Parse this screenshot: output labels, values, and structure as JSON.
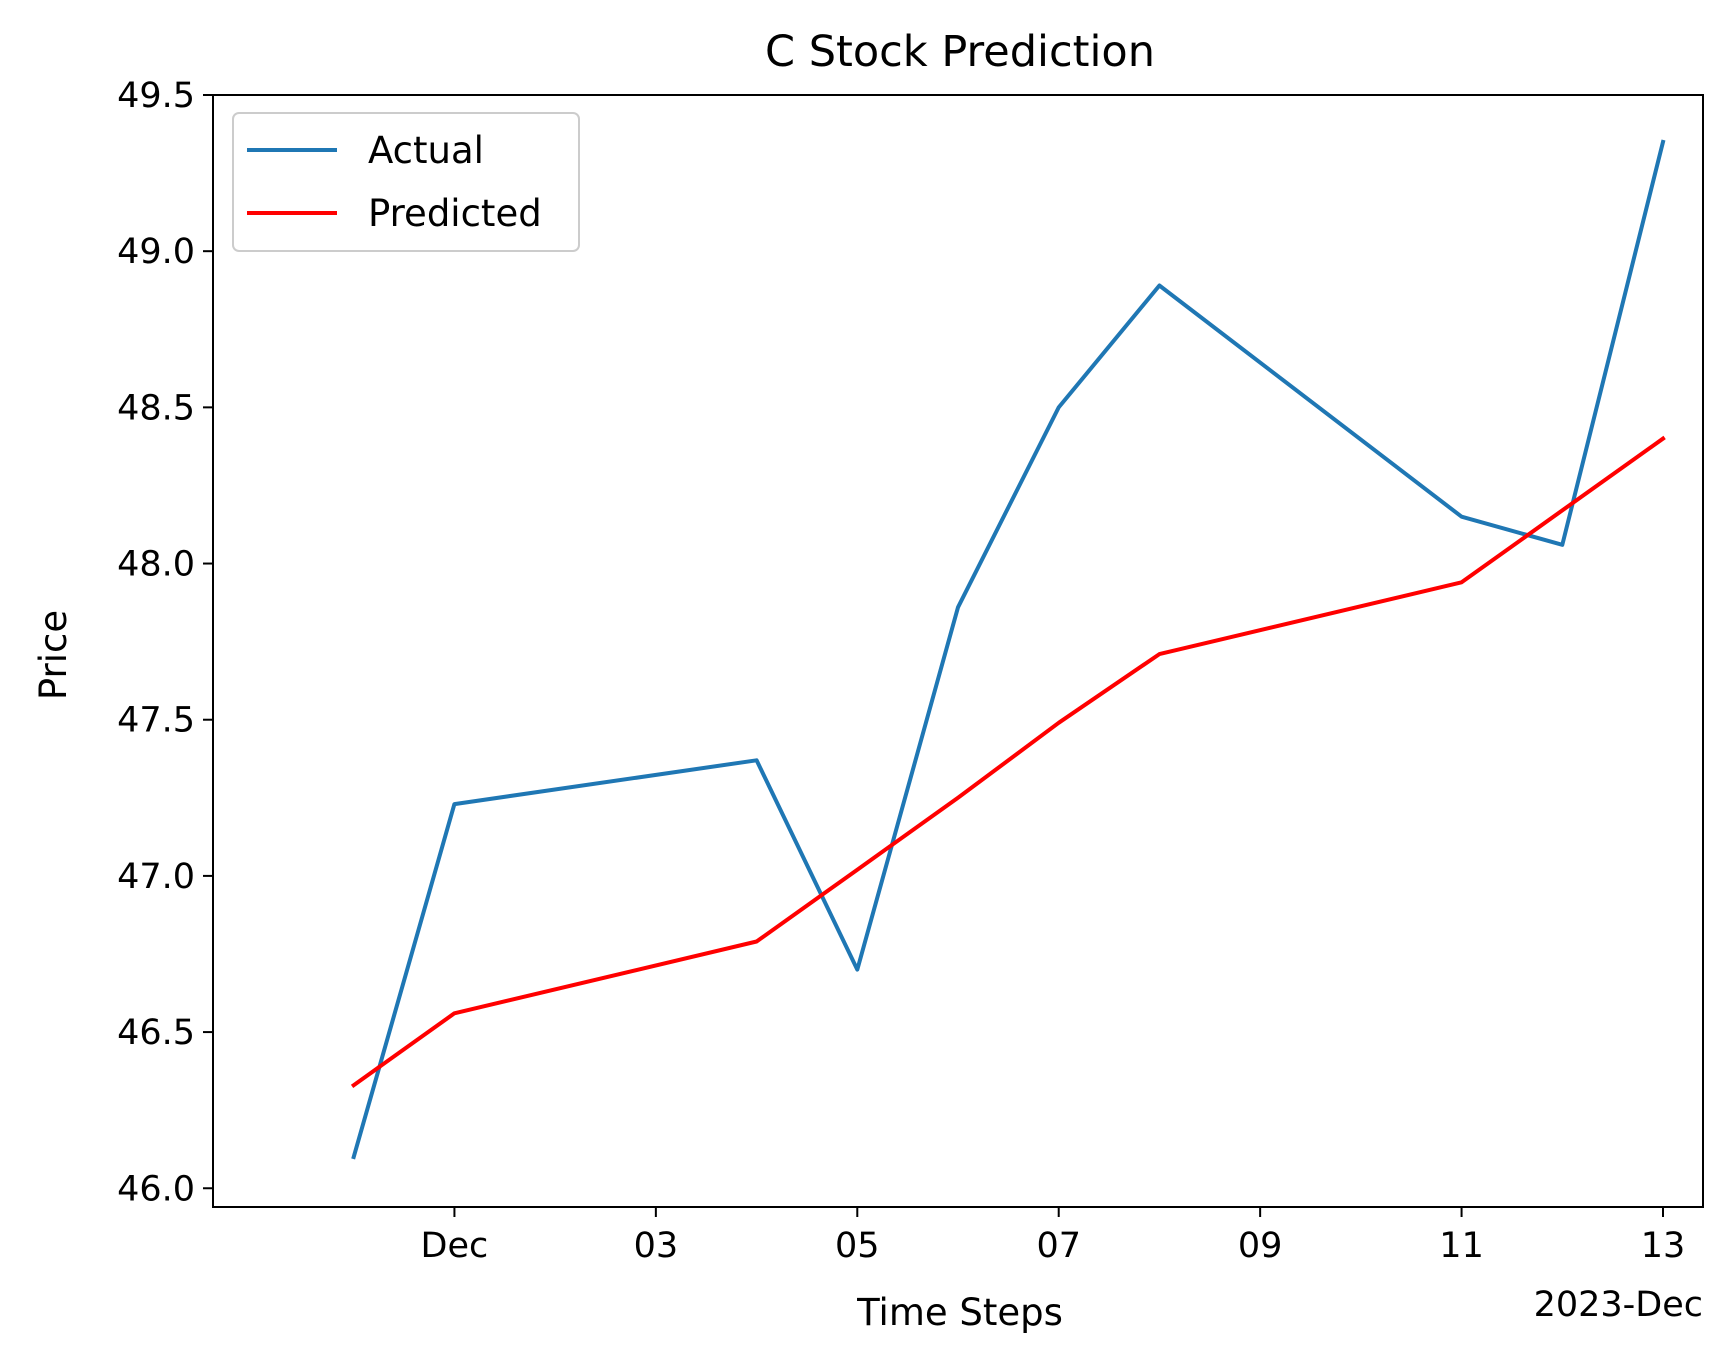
{
  "chart_data": {
    "type": "line",
    "title": "C Stock Prediction",
    "xlabel": "Time Steps",
    "ylabel": "Price",
    "x_offset_label": "2023-Dec",
    "x": [
      "2023-11-30",
      "2023-12-01",
      "2023-12-04",
      "2023-12-05",
      "2023-12-06",
      "2023-12-07",
      "2023-12-08",
      "2023-12-11",
      "2023-12-12",
      "2023-12-13"
    ],
    "xlim": [
      "2023-11-29",
      "2023-12-13"
    ],
    "ylim": [
      45.94,
      49.5
    ],
    "xticks": [
      {
        "date": "2023-12-01",
        "label": "Dec"
      },
      {
        "date": "2023-12-03",
        "label": "03"
      },
      {
        "date": "2023-12-05",
        "label": "05"
      },
      {
        "date": "2023-12-07",
        "label": "07"
      },
      {
        "date": "2023-12-09",
        "label": "09"
      },
      {
        "date": "2023-12-11",
        "label": "11"
      },
      {
        "date": "2023-12-13",
        "label": "13"
      }
    ],
    "yticks": [
      46.0,
      46.5,
      47.0,
      47.5,
      48.0,
      48.5,
      49.0,
      49.5
    ],
    "series": [
      {
        "name": "Actual",
        "color": "#1f77b4",
        "values": [
          46.1,
          47.23,
          47.37,
          46.7,
          47.86,
          48.5,
          48.89,
          48.15,
          48.06,
          49.35
        ]
      },
      {
        "name": "Predicted",
        "color": "#ff0000",
        "values": [
          46.33,
          46.56,
          46.79,
          47.02,
          47.25,
          47.49,
          47.71,
          47.94,
          48.17,
          48.4
        ]
      }
    ],
    "grid": false,
    "legend_position": "upper-left"
  }
}
